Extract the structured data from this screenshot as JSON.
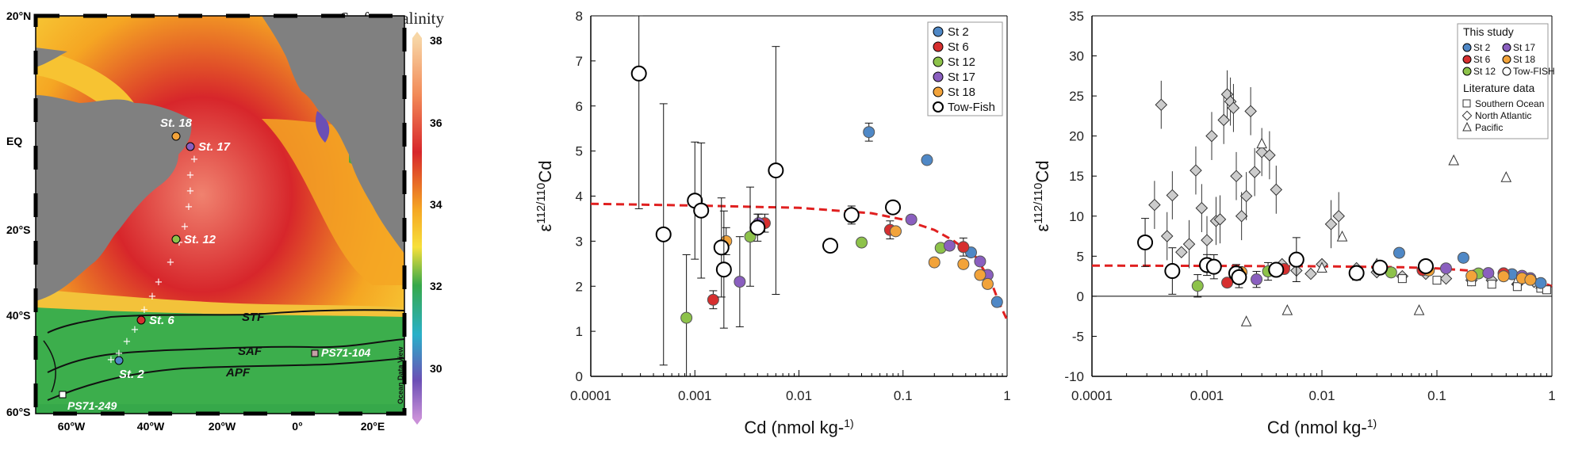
{
  "map": {
    "title": "Surface salinity",
    "credit": "Ocean Data View",
    "colorbar_ticks": [
      "38",
      "36",
      "34",
      "32",
      "30"
    ],
    "lat_labels": [
      "20°N",
      "EQ",
      "20°S",
      "40°S",
      "60°S"
    ],
    "lon_labels": [
      "60°W",
      "40°W",
      "20°W",
      "0°",
      "20°E"
    ],
    "stations": [
      {
        "label": "St. 18",
        "color": "#f2a33a"
      },
      {
        "label": "St. 17",
        "color": "#8a5fbf"
      },
      {
        "label": "St. 12",
        "color": "#8dc24a"
      },
      {
        "label": "St. 6",
        "color": "#d62f2f"
      },
      {
        "label": "St. 2",
        "color": "#4f88c6"
      }
    ],
    "fronts": [
      "STF",
      "SAF",
      "APF"
    ],
    "cores": [
      "PS71-104",
      "PS71-249"
    ],
    "colors": {
      "land": "#808080",
      "high": "#d7262b",
      "mid": "#f5a623",
      "low": "#36a84a"
    }
  },
  "chart_data": [
    {
      "type": "scatter",
      "xlabel": "Cd (nmol kg-1)",
      "ylabel": "ε112/110Cd",
      "xscale": "log",
      "xlim": [
        0.0001,
        1
      ],
      "ylim": [
        0,
        8
      ],
      "xticks": [
        "0.0001",
        "0.001",
        "0.01",
        "0.1",
        "1"
      ],
      "yticks": [
        "0",
        "1",
        "2",
        "3",
        "4",
        "5",
        "6",
        "7",
        "8"
      ],
      "legend": [
        "St 2",
        "St 6",
        "St 12",
        "St 17",
        "St 18",
        "Tow-Fish"
      ],
      "legend_position": "top-right",
      "series": [
        {
          "name": "St 2",
          "color": "#4f88c6",
          "points": [
            [
              0.047,
              5.42
            ],
            [
              0.17,
              4.8
            ],
            [
              0.45,
              2.75
            ],
            [
              0.8,
              1.65
            ]
          ],
          "err": [
            0.2,
            0.1,
            0.1,
            0.1
          ]
        },
        {
          "name": "St 6",
          "color": "#d62f2f",
          "points": [
            [
              0.0015,
              1.7
            ],
            [
              0.0047,
              3.4
            ],
            [
              0.075,
              3.25
            ],
            [
              0.38,
              2.87
            ]
          ],
          "err": [
            0.2,
            0.2,
            0.2,
            0.2
          ]
        },
        {
          "name": "St 12",
          "color": "#8dc24a",
          "points": [
            [
              0.00083,
              1.3
            ],
            [
              0.0034,
              3.1
            ],
            [
              0.04,
              2.97
            ],
            [
              0.23,
              2.85
            ]
          ],
          "err": [
            1.4,
            1.1,
            0.1,
            0.1
          ]
        },
        {
          "name": "St 17",
          "color": "#8a5fbf",
          "points": [
            [
              0.0027,
              2.1
            ],
            [
              0.0041,
              3.4
            ],
            [
              0.12,
              3.48
            ],
            [
              0.28,
              2.9
            ],
            [
              0.55,
              2.55
            ],
            [
              0.65,
              2.25
            ]
          ],
          "err": [
            1.0,
            0.2,
            0.1,
            0.1,
            0.1,
            0.1
          ]
        },
        {
          "name": "St 18",
          "color": "#f2a33a",
          "points": [
            [
              0.002,
              3.0
            ],
            [
              0.085,
              3.22
            ],
            [
              0.2,
              2.53
            ],
            [
              0.38,
              2.49
            ],
            [
              0.55,
              2.25
            ],
            [
              0.65,
              2.05
            ]
          ],
          "err": [
            0.3,
            0.1,
            0.1,
            0.1,
            0.1,
            0.1
          ]
        },
        {
          "name": "Tow-Fish",
          "color": "#ffffff",
          "points": [
            [
              0.00029,
              6.72
            ],
            [
              0.0005,
              3.15
            ],
            [
              0.001,
              3.9
            ],
            [
              0.00115,
              3.68
            ],
            [
              0.0018,
              2.86
            ],
            [
              0.0019,
              2.37
            ],
            [
              0.004,
              3.3
            ],
            [
              0.006,
              4.57
            ],
            [
              0.02,
              2.9
            ],
            [
              0.032,
              3.58
            ],
            [
              0.08,
              3.75
            ]
          ],
          "err": [
            3.0,
            2.9,
            1.3,
            1.5,
            1.1,
            1.3,
            0.3,
            2.75,
            0.1,
            0.2,
            0.1
          ]
        }
      ],
      "fit": {
        "plateau": 3.8,
        "points": [
          [
            0.0001,
            3.83
          ],
          [
            0.001,
            3.79
          ],
          [
            0.01,
            3.74
          ],
          [
            0.05,
            3.62
          ],
          [
            0.1,
            3.48
          ],
          [
            0.2,
            3.25
          ],
          [
            0.3,
            3.02
          ],
          [
            0.5,
            2.65
          ],
          [
            0.7,
            2.1
          ],
          [
            0.85,
            1.6
          ],
          [
            1,
            1.25
          ]
        ]
      }
    },
    {
      "type": "scatter",
      "xlabel": "Cd (nmol kg-1)",
      "ylabel": "ε112/110Cd",
      "xscale": "log",
      "xlim": [
        0.0001,
        1
      ],
      "ylim": [
        -10,
        35
      ],
      "xticks": [
        "0.0001",
        "0.001",
        "0.01",
        "0.1",
        "1"
      ],
      "yticks": [
        "-10",
        "-5",
        "0",
        "5",
        "10",
        "15",
        "20",
        "25",
        "30",
        "35"
      ],
      "legend_title": "This study",
      "legend": [
        "St 2",
        "St 17",
        "St 6",
        "St 18",
        "St 12",
        "Tow-FISH"
      ],
      "literature_title": "Literature data",
      "literature_legend": [
        "Southern Ocean",
        "North Atlantic",
        "Pacific"
      ],
      "legend_position": "top-right",
      "literature": {
        "north_atlantic": [
          [
            0.00035,
            11.4
          ],
          [
            0.0004,
            23.9
          ],
          [
            0.00045,
            7.5
          ],
          [
            0.0005,
            12.6
          ],
          [
            0.0006,
            5.5
          ],
          [
            0.0007,
            6.5
          ],
          [
            0.0008,
            15.7
          ],
          [
            0.0009,
            11.0
          ],
          [
            0.001,
            7.0
          ],
          [
            0.0011,
            20.0
          ],
          [
            0.0012,
            9.4
          ],
          [
            0.0013,
            9.6
          ],
          [
            0.0014,
            22.0
          ],
          [
            0.0015,
            25.2
          ],
          [
            0.0016,
            24.3
          ],
          [
            0.0017,
            23.5
          ],
          [
            0.0018,
            15.0
          ],
          [
            0.002,
            10.0
          ],
          [
            0.0022,
            12.5
          ],
          [
            0.0024,
            23.1
          ],
          [
            0.0026,
            15.5
          ],
          [
            0.003,
            18.0
          ],
          [
            0.0035,
            17.6
          ],
          [
            0.004,
            13.3
          ],
          [
            0.0045,
            4.0
          ],
          [
            0.006,
            3.2
          ],
          [
            0.008,
            2.8
          ],
          [
            0.01,
            4.0
          ],
          [
            0.012,
            9.0
          ],
          [
            0.014,
            10.0
          ],
          [
            0.02,
            3.5
          ],
          [
            0.03,
            3.0
          ],
          [
            0.05,
            2.5
          ],
          [
            0.08,
            2.8
          ],
          [
            0.12,
            2.2
          ],
          [
            0.2,
            2.0
          ],
          [
            0.3,
            2.0
          ],
          [
            0.5,
            1.5
          ],
          [
            0.7,
            1.8
          ]
        ],
        "pacific": [
          [
            0.0022,
            -3.2
          ],
          [
            0.003,
            19.0
          ],
          [
            0.005,
            -1.8
          ],
          [
            0.01,
            3.5
          ],
          [
            0.015,
            7.4
          ],
          [
            0.03,
            4.0
          ],
          [
            0.07,
            -1.8
          ],
          [
            0.14,
            16.9
          ],
          [
            0.4,
            14.8
          ],
          [
            0.5,
            2.0
          ],
          [
            0.8,
            1.5
          ]
        ],
        "southern_ocean": [
          [
            0.02,
            2.5
          ],
          [
            0.05,
            2.2
          ],
          [
            0.1,
            2.0
          ],
          [
            0.2,
            1.8
          ],
          [
            0.3,
            1.5
          ],
          [
            0.5,
            1.2
          ],
          [
            0.8,
            1.0
          ],
          [
            0.9,
            0.8
          ]
        ]
      },
      "fit": {
        "plateau": 3.8,
        "points": [
          [
            0.0001,
            3.83
          ],
          [
            0.001,
            3.79
          ],
          [
            0.01,
            3.74
          ],
          [
            0.05,
            3.62
          ],
          [
            0.1,
            3.48
          ],
          [
            0.3,
            3.02
          ],
          [
            0.5,
            2.65
          ],
          [
            0.7,
            2.1
          ],
          [
            1,
            1.25
          ]
        ]
      }
    }
  ]
}
